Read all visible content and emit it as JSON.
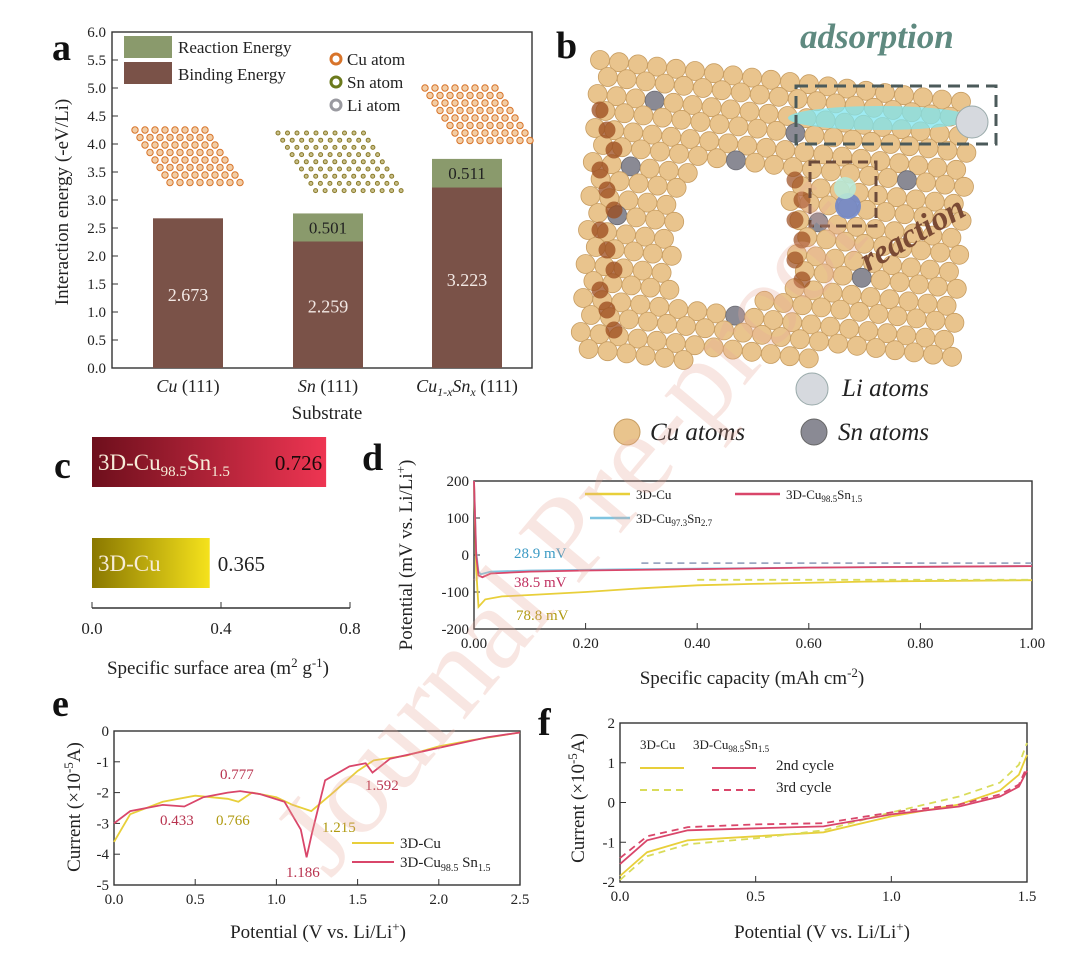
{
  "panel_labels": {
    "a": "a",
    "b": "b",
    "c": "c",
    "d": "d",
    "e": "e",
    "f": "f"
  },
  "watermark": "Journal Pre-proof",
  "colors": {
    "binding": "#7a5248",
    "reaction": "#8a9a6c",
    "yellow": "#e8cf3a",
    "yellow_dash": "#d9dc5a",
    "pink": "#d9466a",
    "blue": "#7fc4e0",
    "cu": "#e9c48d",
    "sn": "#8a8a94",
    "li": "#d9dde2",
    "dark_red": "#7d1020",
    "light_red": "#e8304e",
    "dark_yellow": "#8a7a00",
    "light_yellow": "#f0dc1a"
  },
  "chart_data": [
    {
      "id": "a",
      "type": "bar",
      "stacked": true,
      "categories": [
        "Cu (111)",
        "Sn (111)",
        "Cu1-xSnx (111)"
      ],
      "category_parts": [
        {
          "main": "Cu",
          "sub": "",
          "main2": "",
          "sub2": "",
          "rest": " (111)"
        },
        {
          "main": "Sn",
          "sub": "",
          "main2": "",
          "sub2": "",
          "rest": " (111)"
        },
        {
          "main": "Cu",
          "sub": "1-x",
          "main2": "Sn",
          "sub2": "x",
          "rest": " (111)"
        }
      ],
      "series": [
        {
          "name": "Binding Energy",
          "values": [
            2.673,
            2.259,
            3.223
          ]
        },
        {
          "name": "Reaction Energy",
          "values": [
            0,
            0.501,
            0.511
          ]
        }
      ],
      "value_labels": {
        "binding": [
          "2.673",
          "2.259",
          "3.223"
        ],
        "reaction": [
          "",
          "0.501",
          "0.511"
        ]
      },
      "legend_atoms": [
        "Cu atom",
        "Sn atom",
        "Li atom"
      ],
      "xlabel": "Substrate",
      "ylabel": "Interaction energy (-eV/Li)",
      "ylim": [
        0,
        6
      ],
      "yticks": [
        "0.0",
        "0.5",
        "1.0",
        "1.5",
        "2.0",
        "2.5",
        "3.0",
        "3.5",
        "4.0",
        "4.5",
        "5.0",
        "5.5",
        "6.0"
      ]
    },
    {
      "id": "c",
      "type": "bar",
      "orientation": "horizontal",
      "categories": [
        "3D-Cu98.5Sn1.5",
        "3D-Cu"
      ],
      "bar_labels": [
        {
          "base": "3D-Cu",
          "sub1": "98.5",
          "mid": "Sn",
          "sub2": "1.5"
        },
        {
          "base": "3D-Cu",
          "sub1": "",
          "mid": "",
          "sub2": ""
        }
      ],
      "values": [
        0.726,
        0.365
      ],
      "value_labels": [
        "0.726",
        "0.365"
      ],
      "xlabel": "Specific surface area (m2 g-1)",
      "xlabel_parts": {
        "a": "Specific surface area (m",
        "s1": "2",
        "b": " g",
        "s2": "-1",
        "c": ")"
      },
      "xlim": [
        0,
        0.8
      ],
      "xticks": [
        "0.0",
        "0.4",
        "0.8"
      ]
    },
    {
      "id": "d",
      "type": "line",
      "series": [
        {
          "name": "3D-Cu",
          "x": [
            0,
            0.004,
            0.008,
            0.02,
            0.05,
            0.1,
            0.2,
            0.3,
            0.4,
            0.5,
            0.7,
            1.0
          ],
          "y": [
            200,
            -40,
            -140,
            -120,
            -112,
            -108,
            -100,
            -90,
            -82,
            -78,
            -72,
            -68
          ]
        },
        {
          "name": "3D-Cu98.5Sn1.5",
          "x": [
            0,
            0.004,
            0.008,
            0.015,
            0.03,
            0.1,
            0.2,
            0.4,
            0.6,
            0.8,
            1.0
          ],
          "y": [
            200,
            0,
            -55,
            -60,
            -50,
            -45,
            -42,
            -38,
            -34,
            -32,
            -30
          ]
        },
        {
          "name": "3D-Cu97.3Sn2.7",
          "x": [
            0,
            0.004,
            0.008,
            0.012,
            0.03,
            0.1,
            0.3,
            0.6,
            1.0
          ],
          "y": [
            200,
            10,
            -45,
            -52,
            -45,
            -42,
            -38,
            -34,
            -30
          ]
        },
        {
          "name": "3D-Cu (ref, dash)",
          "x": [
            0.4,
            1.0
          ],
          "y": [
            -67,
            -67
          ]
        },
        {
          "name": "3D-Cu98.5Sn1.5 (ref, dash)",
          "x": [
            0.3,
            1.0
          ],
          "y": [
            -22,
            -22
          ]
        }
      ],
      "legend": [
        {
          "base": "3D-Cu",
          "sub1": "",
          "mid": "",
          "sub2": ""
        },
        {
          "base": "3D-Cu",
          "sub1": "98.5",
          "mid": "Sn",
          "sub2": "1.5"
        },
        {
          "base": "3D-Cu",
          "sub1": "97.3",
          "mid": "Sn",
          "sub2": "2.7"
        }
      ],
      "annotations": [
        "28.9 mV",
        "38.5 mV",
        "78.8 mV"
      ],
      "xlabel": "Specific capacity (mAh cm-2)",
      "xlabel_parts": {
        "a": "Specific capacity (mAh cm",
        "s1": "-2",
        "c": ")"
      },
      "ylabel": "Potential (mV vs. Li/Li+)",
      "ylabel_parts": {
        "a": "Potential (mV vs. Li/Li",
        "s1": "+",
        "c": ")"
      },
      "xlim": [
        0,
        1.0
      ],
      "ylim": [
        -200,
        200
      ],
      "xticks": [
        "0.00",
        "0.20",
        "0.40",
        "0.60",
        "0.80",
        "1.00"
      ],
      "yticks": [
        "-200",
        "-100",
        "0",
        "100",
        "200"
      ]
    },
    {
      "id": "e",
      "type": "line",
      "series": [
        {
          "name": "3D-Cu",
          "x": [
            0,
            0.1,
            0.3,
            0.5,
            0.7,
            0.766,
            0.85,
            1.0,
            1.1,
            1.215,
            1.35,
            1.5,
            1.6,
            1.8,
            2.0,
            2.2,
            2.5
          ],
          "y": [
            -3.6,
            -2.7,
            -2.3,
            -2.1,
            -2.2,
            -2.3,
            -2.0,
            -2.15,
            -2.4,
            -2.6,
            -2.0,
            -1.3,
            -0.95,
            -0.8,
            -0.5,
            -0.3,
            -0.05
          ]
        },
        {
          "name": "3D-Cu98.5Sn1.5",
          "x": [
            0,
            0.1,
            0.3,
            0.433,
            0.55,
            0.7,
            0.777,
            0.9,
            1.05,
            1.15,
            1.186,
            1.22,
            1.3,
            1.45,
            1.55,
            1.592,
            1.7,
            2.0,
            2.3,
            2.5
          ],
          "y": [
            -3.0,
            -2.6,
            -2.4,
            -2.45,
            -2.15,
            -2.0,
            -1.95,
            -2.05,
            -2.3,
            -3.2,
            -4.1,
            -3.3,
            -1.6,
            -1.15,
            -1.05,
            -1.35,
            -0.9,
            -0.55,
            -0.2,
            -0.05
          ]
        }
      ],
      "legend": [
        {
          "base": "3D-Cu",
          "sub1": "",
          "mid": "",
          "sub2": ""
        },
        {
          "base": "3D-Cu",
          "sub1": "98.5",
          "mid": " Sn",
          "sub2": "1.5"
        }
      ],
      "annotations": [
        "0.777",
        "1.592",
        "0.433",
        "0.766",
        "1.215",
        "1.186"
      ],
      "xlabel": "Potential (V vs. Li/Li+)",
      "xlabel_parts": {
        "a": "Potential (V vs. Li/Li",
        "s1": "+",
        "c": ")"
      },
      "ylabel": "Current (×10-5A)",
      "ylabel_parts": {
        "a": "Current (×10",
        "s1": "-5",
        "c": "A)"
      },
      "xlim": [
        0,
        2.5
      ],
      "ylim": [
        -5,
        0
      ],
      "xticks": [
        "0.0",
        "0.5",
        "1.0",
        "1.5",
        "2.0",
        "2.5"
      ],
      "yticks": [
        "-5",
        "-4",
        "-3",
        "-2",
        "-1",
        "0"
      ]
    },
    {
      "id": "f",
      "type": "line",
      "series": [
        {
          "name": "3D-Cu 2nd cycle",
          "x": [
            0,
            0.1,
            0.25,
            0.5,
            0.75,
            1.0,
            1.25,
            1.4,
            1.47,
            1.5
          ],
          "y": [
            -1.85,
            -1.25,
            -0.95,
            -0.85,
            -0.75,
            -0.35,
            -0.05,
            0.3,
            0.7,
            1.2
          ]
        },
        {
          "name": "3D-Cu 3rd cycle",
          "x": [
            0,
            0.1,
            0.25,
            0.5,
            0.75,
            1.0,
            1.25,
            1.4,
            1.47,
            1.5
          ],
          "y": [
            -1.95,
            -1.35,
            -1.05,
            -0.9,
            -0.7,
            -0.25,
            0.15,
            0.5,
            0.95,
            1.5
          ]
        },
        {
          "name": "3D-Cu98.5Sn1.5 2nd cycle",
          "x": [
            0,
            0.1,
            0.25,
            0.5,
            0.75,
            1.0,
            1.25,
            1.4,
            1.47,
            1.5
          ],
          "y": [
            -1.55,
            -0.95,
            -0.7,
            -0.65,
            -0.6,
            -0.3,
            -0.1,
            0.15,
            0.4,
            0.8
          ]
        },
        {
          "name": "3D-Cu98.5Sn1.5 3rd cycle",
          "x": [
            0,
            0.1,
            0.25,
            0.5,
            0.75,
            1.0,
            1.25,
            1.4,
            1.47,
            1.5
          ],
          "y": [
            -1.4,
            -0.85,
            -0.62,
            -0.55,
            -0.52,
            -0.25,
            -0.05,
            0.2,
            0.45,
            0.9
          ]
        }
      ],
      "legend_headers": [
        {
          "base": "3D-Cu",
          "sub1": "",
          "mid": "",
          "sub2": ""
        },
        {
          "base": "3D-Cu",
          "sub1": "98.5",
          "mid": "Sn",
          "sub2": "1.5"
        }
      ],
      "legend_rows": [
        "2nd cycle",
        "3rd cycle"
      ],
      "xlabel": "Potential (V vs. Li/Li+)",
      "xlabel_parts": {
        "a": "Potential (V vs. Li/Li",
        "s1": "+",
        "c": ")"
      },
      "ylabel": "Current (×10-5A)",
      "ylabel_parts": {
        "a": "Current (×10",
        "s1": "-5",
        "c": "A)"
      },
      "xlim": [
        0,
        1.5
      ],
      "ylim": [
        -2,
        2
      ],
      "xticks": [
        "0.0",
        "0.5",
        "1.0",
        "1.5"
      ],
      "yticks": [
        "-2",
        "-1",
        "0",
        "1",
        "2"
      ]
    }
  ],
  "panel_b": {
    "labels": [
      "adsorption",
      "reaction"
    ],
    "legend": [
      "Li atoms",
      "Cu atoms",
      "Sn atoms"
    ]
  }
}
